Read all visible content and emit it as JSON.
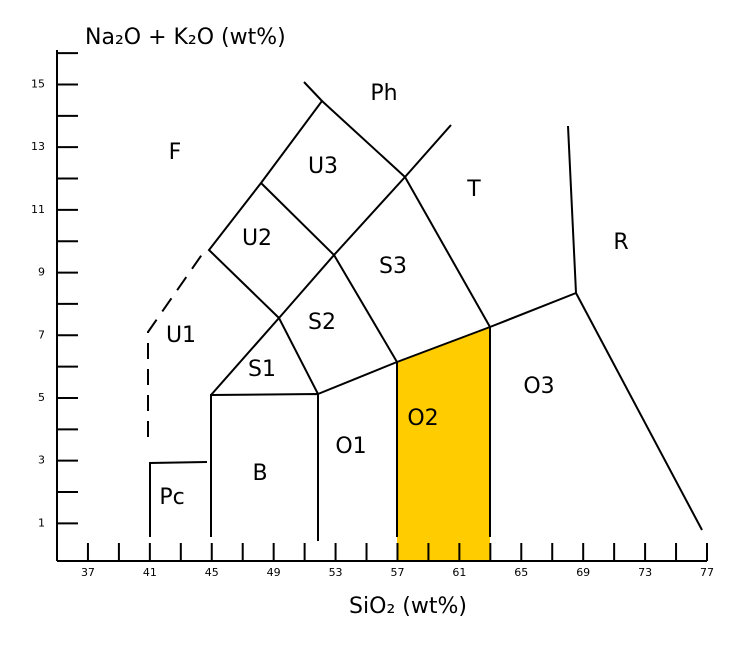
{
  "chart_data": {
    "type": "tas",
    "title": "Na₂O + K₂O (wt%)",
    "x_label": "SiO₂ (wt%)",
    "xlim": [
      35,
      77
    ],
    "xticks": [
      37,
      41,
      45,
      49,
      53,
      57,
      61,
      65,
      69,
      73,
      77
    ],
    "xminor_ticks": [
      39,
      43,
      47,
      51,
      55,
      59,
      63,
      67,
      71,
      75
    ],
    "ylim": [
      -0.2,
      16.1
    ],
    "yticks": [
      1,
      3,
      5,
      7,
      9,
      11,
      13,
      15
    ],
    "yminor_ticks": [
      2,
      4,
      6,
      8,
      10,
      12,
      14,
      16
    ],
    "highlight_color": "#ffcc00",
    "regions": [
      "F",
      "Ph",
      "U3",
      "T",
      "R",
      "U2",
      "S3",
      "U1",
      "S2",
      "S1",
      "O3",
      "O2",
      "O1",
      "B",
      "Pc"
    ]
  }
}
